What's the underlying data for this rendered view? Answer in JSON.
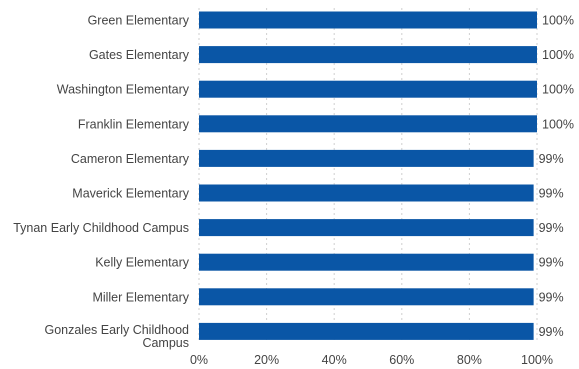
{
  "chart_data": {
    "type": "bar",
    "orientation": "horizontal",
    "categories": [
      "Green Elementary",
      "Gates Elementary",
      "Washington Elementary",
      "Franklin Elementary",
      "Cameron Elementary",
      "Maverick Elementary",
      "Tynan Early Childhood Campus",
      "Kelly Elementary",
      "Miller Elementary",
      "Gonzales Early Childhood Campus"
    ],
    "category_lines": [
      [
        "Green Elementary"
      ],
      [
        "Gates Elementary"
      ],
      [
        "Washington Elementary"
      ],
      [
        "Franklin Elementary"
      ],
      [
        "Cameron Elementary"
      ],
      [
        "Maverick Elementary"
      ],
      [
        "Tynan Early Childhood Campus"
      ],
      [
        "Kelly Elementary"
      ],
      [
        "Miller Elementary"
      ],
      [
        "Gonzales Early Childhood",
        "Campus"
      ]
    ],
    "values": [
      100,
      100,
      100,
      100,
      99,
      99,
      99,
      99,
      99,
      99
    ],
    "value_labels": [
      "100%",
      "100%",
      "100%",
      "100%",
      "99%",
      "99%",
      "99%",
      "99%",
      "99%",
      "99%"
    ],
    "xlim": [
      0,
      100
    ],
    "xticks": [
      0,
      20,
      40,
      60,
      80,
      100
    ],
    "xtick_labels": [
      "0%",
      "20%",
      "40%",
      "60%",
      "80%",
      "100%"
    ],
    "grid": true,
    "title": "",
    "xlabel": "",
    "ylabel": "",
    "bar_color": "#0a56a6"
  }
}
